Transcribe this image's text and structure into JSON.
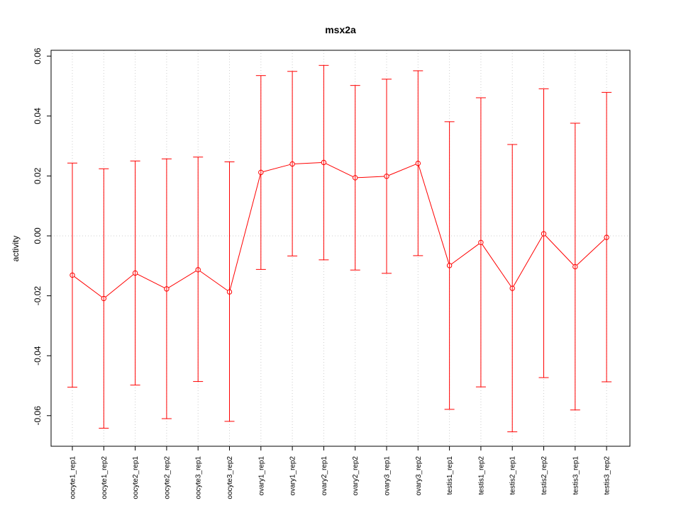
{
  "chart_data": {
    "type": "line",
    "title": "msx2a",
    "xlabel": "",
    "ylabel": "activity",
    "ylim": [
      -0.07,
      0.06
    ],
    "yticks": [
      -0.06,
      -0.04,
      -0.02,
      0.0,
      0.02,
      0.04,
      0.06
    ],
    "ytick_labels": [
      "-0.06",
      "-0.04",
      "-0.02",
      "0.00",
      "0.02",
      "0.04",
      "0.06"
    ],
    "grid": true,
    "legend": "none",
    "color": "#ff0000",
    "categories": [
      "oocyte1_rep1",
      "oocyte1_rep2",
      "oocyte2_rep1",
      "oocyte2_rep2",
      "oocyte3_rep1",
      "oocyte3_rep2",
      "ovary1_rep1",
      "ovary1_rep2",
      "ovary2_rep1",
      "ovary2_rep2",
      "ovary3_rep1",
      "ovary3_rep2",
      "testis1_rep1",
      "testis1_rep2",
      "testis2_rep1",
      "testis2_rep2",
      "testis3_rep1",
      "testis3_rep2"
    ],
    "values": [
      -0.0131,
      -0.0209,
      -0.0124,
      -0.0177,
      -0.0113,
      -0.0187,
      0.0212,
      0.024,
      0.0245,
      0.0194,
      0.0199,
      0.0242,
      -0.0099,
      -0.0022,
      -0.0175,
      0.0007,
      -0.0103,
      -0.0005
    ],
    "error_upper": [
      0.0243,
      0.0224,
      0.025,
      0.0257,
      0.0263,
      0.0247,
      0.0535,
      0.0549,
      0.0569,
      0.0502,
      0.0523,
      0.0551,
      0.0381,
      0.0461,
      0.0305,
      0.0491,
      0.0376,
      0.0479
    ],
    "error_lower": [
      -0.0505,
      -0.0642,
      -0.0498,
      -0.061,
      -0.0486,
      -0.0619,
      -0.0112,
      -0.0067,
      -0.008,
      -0.0114,
      -0.0125,
      -0.0066,
      -0.0579,
      -0.0504,
      -0.0654,
      -0.0473,
      -0.0581,
      -0.0487
    ]
  }
}
